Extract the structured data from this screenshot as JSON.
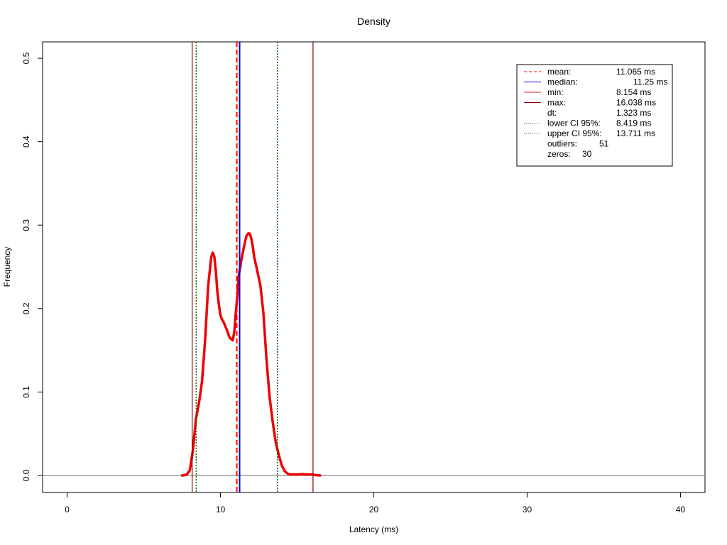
{
  "chart_data": {
    "type": "line",
    "title": "Density",
    "xlabel": "Latency (ms)",
    "ylabel": "Frequency",
    "xlim": [
      -1.6,
      41.6
    ],
    "ylim": [
      -0.0204,
      0.5196
    ],
    "xticks": [
      0,
      10,
      20,
      30,
      40
    ],
    "yticks": [
      0.0,
      0.1,
      0.2,
      0.3,
      0.4,
      0.5
    ],
    "xtick_labels": [
      "0",
      "10",
      "20",
      "30",
      "40"
    ],
    "ytick_labels": [
      "0.0",
      "0.1",
      "0.2",
      "0.3",
      "0.4",
      "0.5"
    ],
    "grid": false,
    "legend_position": "top-right",
    "series": [
      {
        "color": "#ee0000",
        "x": [
          7.5,
          7.8,
          8.0,
          8.2,
          8.4,
          8.6,
          8.8,
          9.0,
          9.2,
          9.4,
          9.5,
          9.6,
          9.7,
          9.8,
          9.9,
          10.0,
          10.1,
          10.2,
          10.4,
          10.6,
          10.8,
          10.9,
          11.0,
          11.1,
          11.2,
          11.4,
          11.6,
          11.7,
          11.8,
          11.9,
          12.0,
          12.1,
          12.2,
          12.4,
          12.6,
          12.8,
          13.0,
          13.2,
          13.4,
          13.6,
          13.8,
          14.0,
          14.2,
          14.4,
          14.6,
          14.8,
          15.0,
          15.2,
          15.4,
          15.6,
          15.8,
          16.0,
          16.2,
          16.5
        ],
        "y": [
          0.0,
          0.001,
          0.006,
          0.03,
          0.068,
          0.087,
          0.113,
          0.162,
          0.228,
          0.262,
          0.267,
          0.262,
          0.245,
          0.22,
          0.204,
          0.192,
          0.187,
          0.184,
          0.175,
          0.165,
          0.162,
          0.172,
          0.195,
          0.215,
          0.24,
          0.262,
          0.28,
          0.287,
          0.29,
          0.29,
          0.285,
          0.275,
          0.262,
          0.245,
          0.228,
          0.195,
          0.14,
          0.095,
          0.065,
          0.04,
          0.025,
          0.012,
          0.005,
          0.002,
          0.001,
          0.001,
          0.001,
          0.0015,
          0.0015,
          0.001,
          0.001,
          0.001,
          0.0005,
          0.0
        ]
      }
    ],
    "vlines": [
      {
        "name": "mean",
        "x": 11.065,
        "color": "#ff0000",
        "dash": "dashed",
        "width": 2
      },
      {
        "name": "median",
        "x": 11.25,
        "color": "#0000ee",
        "dash": "solid",
        "width": 2
      },
      {
        "name": "min",
        "x": 8.154,
        "color": "#8b0000",
        "dash": "solid",
        "width": 1.2
      },
      {
        "name": "max",
        "x": 16.038,
        "color": "#8b0000",
        "dash": "solid",
        "width": 1.2
      },
      {
        "name": "lower CI 95%",
        "x": 8.419,
        "color": "#006400",
        "dash": "dotted",
        "width": 1.5
      },
      {
        "name": "upper CI 95%",
        "x": 13.711,
        "color": "#006400",
        "dash": "dotted",
        "width": 1.5
      }
    ],
    "hline": {
      "y": 0.0,
      "color": "#888888"
    },
    "legend": [
      {
        "label": "mean:",
        "value": "11.065 ms",
        "color": "#ff0000",
        "dash": "dashed"
      },
      {
        "label": "median:",
        "value": "11.25 ms",
        "color": "#0000ee",
        "dash": "solid"
      },
      {
        "label": "min:",
        "value": "8.154 ms",
        "color": "#cc2233",
        "dash": "solid"
      },
      {
        "label": "max:",
        "value": "16.038 ms",
        "color": "#8b0000",
        "dash": "solid"
      },
      {
        "label": "dt:",
        "value": "1.323 ms",
        "color": "",
        "dash": "none"
      },
      {
        "label": "lower CI 95%:",
        "value": "8.419 ms",
        "color": "#006400",
        "dash": "dotted"
      },
      {
        "label": "upper CI 95%:",
        "value": "13.711 ms",
        "color": "#006400",
        "dash": "dotted"
      },
      {
        "label": "outliers:",
        "value": "51",
        "color": "",
        "dash": "none"
      },
      {
        "label": "zeros:",
        "value": "30",
        "color": "",
        "dash": "none"
      }
    ]
  }
}
